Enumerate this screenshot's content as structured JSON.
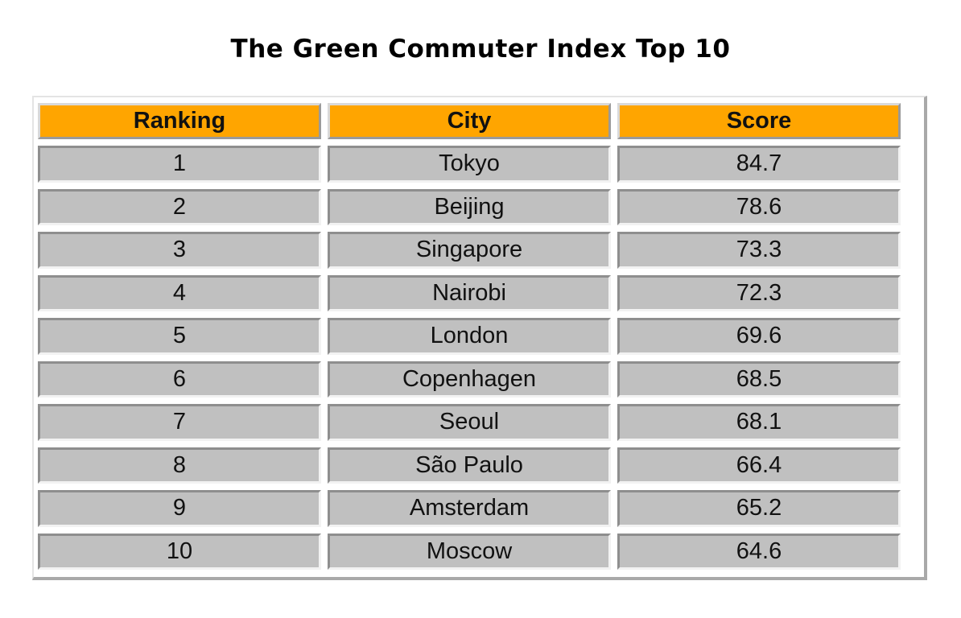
{
  "chart_data": {
    "type": "table",
    "title": "The Green Commuter Index Top 10",
    "columns": [
      "Ranking",
      "City",
      "Score"
    ],
    "rows": [
      [
        "1",
        "Tokyo",
        "84.7"
      ],
      [
        "2",
        "Beijing",
        "78.6"
      ],
      [
        "3",
        "Singapore",
        "73.3"
      ],
      [
        "4",
        "Nairobi",
        "72.3"
      ],
      [
        "5",
        "London",
        "69.6"
      ],
      [
        "6",
        "Copenhagen",
        "68.5"
      ],
      [
        "7",
        "Seoul",
        "68.1"
      ],
      [
        "8",
        "São Paulo",
        "66.4"
      ],
      [
        "9",
        "Amsterdam",
        "65.2"
      ],
      [
        "10",
        "Moscow",
        "64.6"
      ]
    ]
  },
  "colors": {
    "header_background": "#ffa500",
    "cell_background": "#c0c0c0",
    "text": "#111111"
  }
}
